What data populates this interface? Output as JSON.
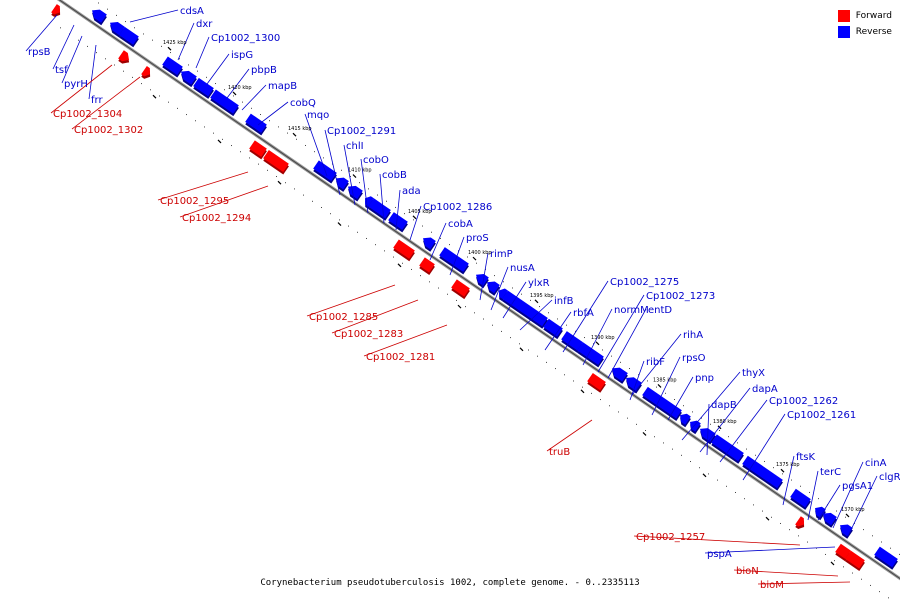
{
  "legend": [
    {
      "label": "Forward",
      "color": "#ff0000"
    },
    {
      "label": "Reverse",
      "color": "#0000ff"
    }
  ],
  "caption": "Corynebacterium pseudotuberculosis 1002, complete genome. - 0..2335113",
  "ticks": [
    "1425 kbp",
    "1420 kbp",
    "1415 kbp",
    "1410 kbp",
    "1405 kbp",
    "1400 kbp",
    "1395 kbp",
    "1390 kbp",
    "1385 kbp",
    "1380 kbp",
    "1375 kbp",
    "1370 kbp"
  ],
  "reverse_genes": [
    "cdsA",
    "dxr",
    "Cp1002_1300",
    "ispG",
    "pbpB",
    "mapB",
    "cobQ",
    "mqo",
    "Cp1002_1291",
    "chlI",
    "cobO",
    "cobB",
    "ada",
    "Cp1002_1286",
    "cobA",
    "proS",
    "rimP",
    "nusA",
    "ylxR",
    "infB",
    "rbfA",
    "Cp1002_1275",
    "normM",
    "Cp1002_1273",
    "entD",
    "rihA",
    "ribF",
    "rpsO",
    "pnp",
    "thyX",
    "dapA",
    "dapB",
    "Cp1002_1262",
    "Cp1002_1261",
    "ftsK",
    "terC",
    "cinA",
    "pgsA1",
    "clgR",
    "rpsB",
    "tsf",
    "pyrH",
    "frr",
    "pspA"
  ],
  "forward_genes": [
    "Cp1002_1304",
    "Cp1002_1302",
    "Cp1002_1295",
    "Cp1002_1294",
    "Cp1002_1285",
    "Cp1002_1283",
    "Cp1002_1281",
    "truB",
    "Cp1002_1257",
    "bioN",
    "bioM"
  ]
}
